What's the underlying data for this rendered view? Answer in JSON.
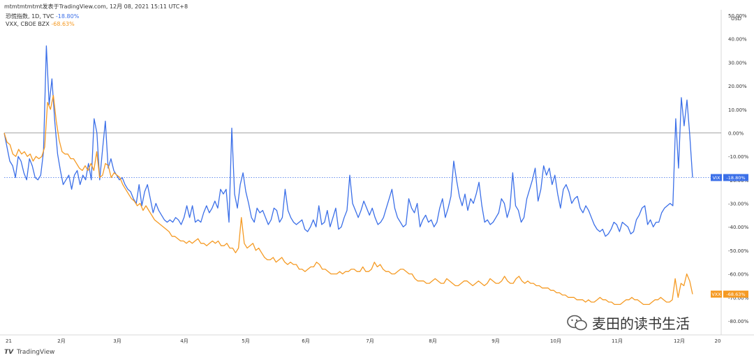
{
  "header": {
    "text": "mtmtmtmtmt发表于TradingView.com, 12月 08, 2021 15:11 UTC+8"
  },
  "legend": {
    "line1_name": "恐慌指数, 1D, TVC",
    "line1_value": "-18.80%",
    "line2_name": "VXX, CBOE BZX",
    "line2_value": "-68.63%"
  },
  "footer": {
    "brand": "TradingView",
    "logo": "𝙏𝙑"
  },
  "watermark": {
    "text": "麦田的读书生活"
  },
  "colors": {
    "blue": "#3b6fe8",
    "orange": "#f59a23",
    "grid": "#e6e6e6"
  },
  "chart_data": {
    "type": "line",
    "y_axis_unit": "USD",
    "y_ticks": [
      "50.00%",
      "40.00%",
      "30.00%",
      "20.00%",
      "10.00%",
      "0.00%",
      "-10.00%",
      "-20.00%",
      "-30.00%",
      "-40.00%",
      "-50.00%",
      "-60.00%",
      "-70.00%",
      "-80.00%"
    ],
    "y_tick_values": [
      50,
      40,
      30,
      20,
      10,
      0,
      -10,
      -20,
      -30,
      -40,
      -50,
      -60,
      -70,
      -80
    ],
    "x_tick_labels": [
      "21",
      "2月",
      "3月",
      "4月",
      "5月",
      "6月",
      "7月",
      "8月",
      "9月",
      "10月",
      "11月",
      "12月",
      "20"
    ],
    "ylim": [
      -84,
      51
    ],
    "series": [
      {
        "name": "VIX",
        "last_label": "VIX",
        "last_value_label": "-18.80%",
        "values": [
          0,
          -6,
          -12,
          -14,
          -19,
          -10,
          -12,
          -17,
          -20,
          -11,
          -14,
          -19,
          -20,
          -18,
          -8,
          37,
          12,
          23,
          5,
          -9,
          -16,
          -22,
          -20,
          -18,
          -24,
          -18,
          -16,
          -22,
          -18,
          -20,
          -13,
          -20,
          6,
          0,
          -20,
          -7,
          5,
          -15,
          -11,
          -16,
          -18,
          -20,
          -19,
          -22,
          -24,
          -25,
          -28,
          -30,
          -22,
          -31,
          -25,
          -22,
          -28,
          -34,
          -30,
          -33,
          -35,
          -37,
          -38,
          -37,
          -38,
          -36,
          -37,
          -39,
          -36,
          -31,
          -36,
          -31,
          -38,
          -37,
          -38,
          -34,
          -31,
          -34,
          -32,
          -29,
          -32,
          -24,
          -26,
          -24,
          -38,
          2,
          -26,
          -32,
          -22,
          -17,
          -25,
          -30,
          -36,
          -38,
          -32,
          -34,
          -33,
          -36,
          -39,
          -37,
          -32,
          -33,
          -38,
          -36,
          -24,
          -33,
          -36,
          -38,
          -39,
          -38,
          -37,
          -41,
          -42,
          -40,
          -37,
          -40,
          -31,
          -39,
          -38,
          -33,
          -40,
          -36,
          -32,
          -41,
          -40,
          -36,
          -33,
          -18,
          -30,
          -33,
          -36,
          -33,
          -29,
          -32,
          -35,
          -32,
          -36,
          -39,
          -38,
          -36,
          -32,
          -28,
          -24,
          -32,
          -36,
          -38,
          -40,
          -39,
          -28,
          -32,
          -34,
          -30,
          -40,
          -37,
          -35,
          -38,
          -37,
          -40,
          -38,
          -32,
          -28,
          -36,
          -32,
          -27,
          -12,
          -20,
          -27,
          -31,
          -26,
          -33,
          -28,
          -30,
          -26,
          -21,
          -31,
          -38,
          -37,
          -39,
          -38,
          -36,
          -34,
          -28,
          -30,
          -36,
          -32,
          -17,
          -31,
          -33,
          -38,
          -36,
          -28,
          -24,
          -20,
          -15,
          -29,
          -24,
          -14,
          -18,
          -15,
          -22,
          -18,
          -26,
          -32,
          -24,
          -22,
          -25,
          -30,
          -28,
          -27,
          -32,
          -34,
          -31,
          -33,
          -36,
          -39,
          -41,
          -42,
          -41,
          -44,
          -43,
          -41,
          -38,
          -39,
          -42,
          -38,
          -39,
          -40,
          -43,
          -42,
          -37,
          -35,
          -32,
          -31,
          -39,
          -37,
          -40,
          -38,
          -38,
          -34,
          -32,
          -31,
          -30,
          -31,
          6,
          -15,
          15,
          3,
          14,
          -1,
          -19
        ]
      },
      {
        "name": "VXX",
        "last_label": "VXX",
        "last_value_label": "-68.63%",
        "values": [
          0,
          -4,
          -5,
          -9,
          -10,
          -7,
          -9,
          -8,
          -10,
          -9,
          -12,
          -10,
          -11,
          -10,
          -6,
          13,
          10,
          16,
          5,
          -3,
          -8,
          -9,
          -9,
          -11,
          -11,
          -13,
          -15,
          -16,
          -14,
          -16,
          -13,
          -16,
          -8,
          -19,
          -18,
          -13,
          -14,
          -19,
          -17,
          -18,
          -19,
          -22,
          -24,
          -26,
          -28,
          -29,
          -31,
          -30,
          -33,
          -31,
          -33,
          -35,
          -37,
          -38,
          -39,
          -40,
          -41,
          -42,
          -44,
          -44,
          -45,
          -46,
          -46,
          -47,
          -46,
          -47,
          -46,
          -45,
          -47,
          -47,
          -48,
          -47,
          -46,
          -47,
          -46,
          -48,
          -48,
          -47,
          -49,
          -49,
          -51,
          -49,
          -36,
          -47,
          -49,
          -48,
          -47,
          -50,
          -49,
          -51,
          -53,
          -54,
          -54,
          -53,
          -55,
          -54,
          -53,
          -55,
          -56,
          -55,
          -56,
          -56,
          -58,
          -58,
          -59,
          -58,
          -57,
          -57,
          -55,
          -56,
          -58,
          -58,
          -59,
          -60,
          -60,
          -60,
          -59,
          -60,
          -59,
          -59,
          -58,
          -58,
          -59,
          -59,
          -57,
          -59,
          -59,
          -58,
          -55,
          -57,
          -56,
          -58,
          -59,
          -59,
          -60,
          -60,
          -59,
          -58,
          -58,
          -59,
          -60,
          -60,
          -62,
          -63,
          -63,
          -63,
          -64,
          -64,
          -63,
          -62,
          -63,
          -64,
          -64,
          -62,
          -63,
          -64,
          -65,
          -65,
          -64,
          -63,
          -63,
          -64,
          -65,
          -64,
          -63,
          -64,
          -65,
          -64,
          -62,
          -63,
          -64,
          -64,
          -63,
          -61,
          -63,
          -64,
          -64,
          -62,
          -61,
          -63,
          -64,
          -63,
          -64,
          -64,
          -65,
          -65,
          -66,
          -66,
          -66,
          -67,
          -67,
          -68,
          -68,
          -69,
          -69,
          -70,
          -70,
          -70,
          -71,
          -71,
          -71,
          -72,
          -71,
          -72,
          -72,
          -71,
          -70,
          -71,
          -71,
          -72,
          -72,
          -73,
          -73,
          -73,
          -72,
          -71,
          -71,
          -70,
          -71,
          -71,
          -72,
          -73,
          -73,
          -73,
          -72,
          -71,
          -71,
          -70,
          -71,
          -72,
          -72,
          -71,
          -62,
          -70,
          -64,
          -65,
          -60,
          -63,
          -68.6
        ]
      }
    ]
  }
}
